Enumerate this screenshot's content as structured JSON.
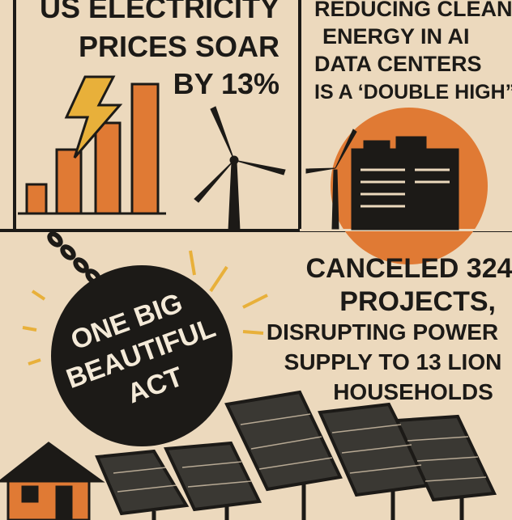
{
  "top_left": {
    "lines": [
      "US ELECTRICITY",
      "PRICES SOAR",
      "BY 13%"
    ]
  },
  "top_right": {
    "lines": [
      "REDUCING CLEAN",
      "ENERGY IN AI",
      "DATA CENTERS",
      "IS A ‘DOUBLE HIGH”"
    ]
  },
  "ball": {
    "lines": [
      "ONE BIG",
      "BEAUTIFUL",
      "ACT"
    ]
  },
  "bottom_right": {
    "lines": [
      "CANCELED 324",
      "PROJECTS,",
      "DISRUPTING POWER",
      "SUPPLY TO 13 LION",
      "HOUSEHOLDS"
    ]
  }
}
